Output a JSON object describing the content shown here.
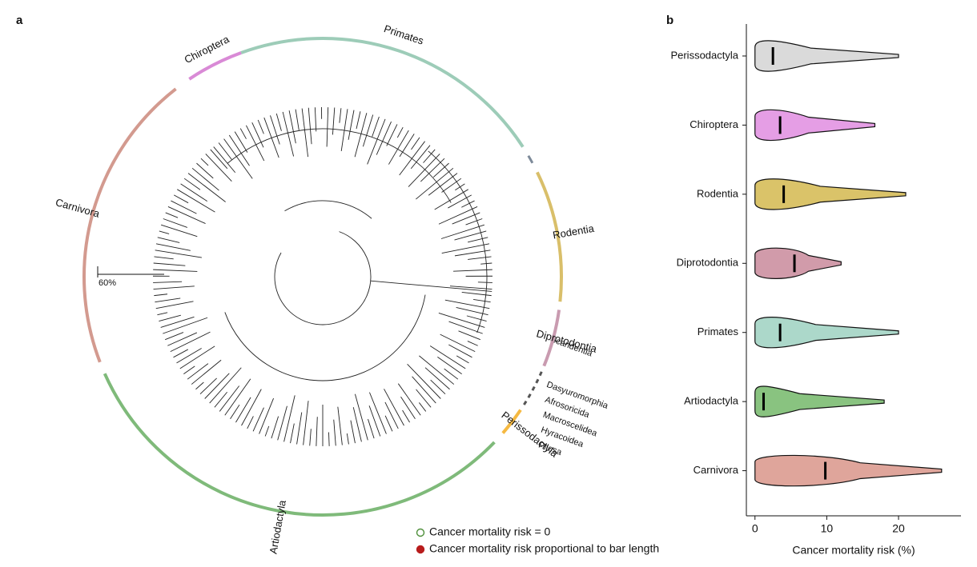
{
  "chart_data": [
    {
      "type": "radial-clades",
      "panel": "a",
      "scale_label": "60%",
      "clades": [
        {
          "name": "Primates",
          "color": "#9dccb8"
        },
        {
          "name": "Scandentia",
          "color": "#7d8a99"
        },
        {
          "name": "Rodentia",
          "color": "#d9bf6a"
        },
        {
          "name": "Diprotodontia",
          "color": "#c99bb0"
        },
        {
          "name": "Dasyuromorphia",
          "color": "#555555"
        },
        {
          "name": "Afrosoricida",
          "color": "#555555"
        },
        {
          "name": "Macroscelidea",
          "color": "#555555"
        },
        {
          "name": "Hyracoidea",
          "color": "#555555"
        },
        {
          "name": "Pilosa",
          "color": "#555555"
        },
        {
          "name": "Perissodactyla",
          "color": "#f5b942"
        },
        {
          "name": "Artiodactyla",
          "color": "#7fba7a"
        },
        {
          "name": "Carnivora",
          "color": "#d39a8f"
        },
        {
          "name": "Chiroptera",
          "color": "#d98ad6"
        }
      ],
      "legend": [
        {
          "name": "Cancer mortality risk = 0",
          "color": "#4e8f3a"
        },
        {
          "name": "Cancer mortality risk proportional to bar length",
          "color": "#b81c1c"
        }
      ]
    },
    {
      "type": "violin",
      "panel": "b",
      "categories": [
        "Perissodactyla",
        "Chiroptera",
        "Rodentia",
        "Diprotodontia",
        "Primates",
        "Artiodactyla",
        "Carnivora"
      ],
      "colors": [
        "#d3d3d3",
        "#e08de0",
        "#d4b94f",
        "#c9899b",
        "#9dd1c1",
        "#74b86a",
        "#d9958a"
      ],
      "min": [
        0,
        0,
        0,
        0,
        0,
        0,
        0
      ],
      "median": [
        2.5,
        3.5,
        4,
        5.5,
        3.5,
        1.2,
        9.8
      ],
      "max": [
        20,
        16.7,
        21,
        12,
        20,
        18,
        26
      ],
      "xlabel": "Cancer mortality risk (%)",
      "xlim": [
        -1.2,
        28.7
      ],
      "xticks": [
        0,
        10,
        20
      ]
    }
  ]
}
